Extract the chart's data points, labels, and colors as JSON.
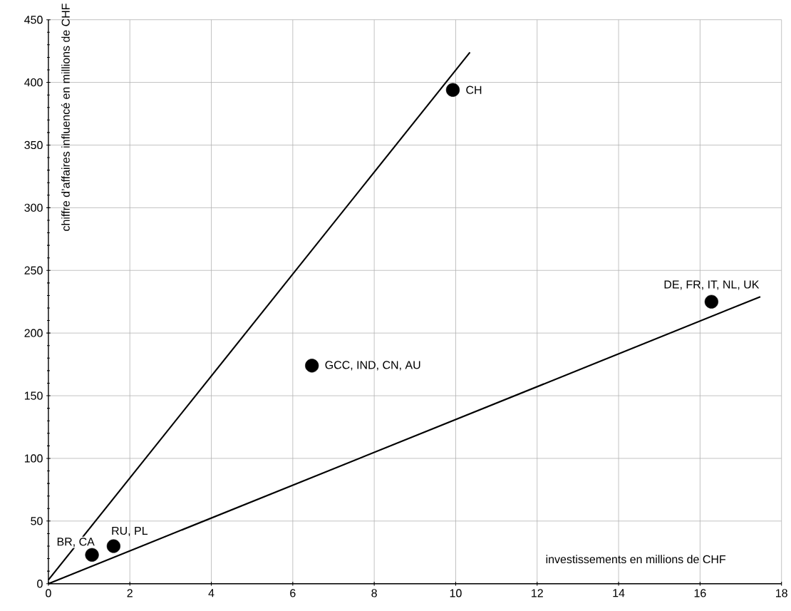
{
  "chart_data": {
    "type": "scatter",
    "xlabel": "investissements en millions de CHF",
    "ylabel": "chiffre d’affaires influencé en millions de CHF",
    "series": [
      {
        "marker": "circle",
        "color": "#000000",
        "x": [
          1.07,
          1.6,
          6.47,
          9.93,
          16.28
        ],
        "values": [
          23,
          30,
          174,
          394,
          225
        ]
      },
      {
        "type": "line",
        "marker": "none",
        "color": "#000000",
        "x": [
          0,
          10.35
        ],
        "values": [
          3,
          424
        ]
      },
      {
        "type": "line",
        "color": "#000000",
        "x": [
          0,
          17.48
        ],
        "values": [
          0,
          229
        ]
      }
    ],
    "annotations": [
      {
        "text": "BR, CA",
        "x": 1.07,
        "y": 23
      },
      {
        "text": "RU, PL",
        "x": 1.6,
        "y": 30
      },
      {
        "text": "GCC, IND, CN, AU",
        "x": 6.47,
        "y": 174
      },
      {
        "text": "CH",
        "x": 9.93,
        "y": 394
      },
      {
        "text": "DE, FR, IT, NL, UK",
        "x": 16.28,
        "y": 225
      }
    ],
    "xlim": [
      0,
      18
    ],
    "ylim": [
      0,
      450
    ],
    "xticks": [
      0,
      2,
      4,
      6,
      8,
      10,
      12,
      14,
      16,
      18
    ],
    "yticks": [
      0,
      50,
      100,
      150,
      200,
      250,
      300,
      350,
      400,
      450
    ],
    "grid": true,
    "line_style": "solid"
  }
}
